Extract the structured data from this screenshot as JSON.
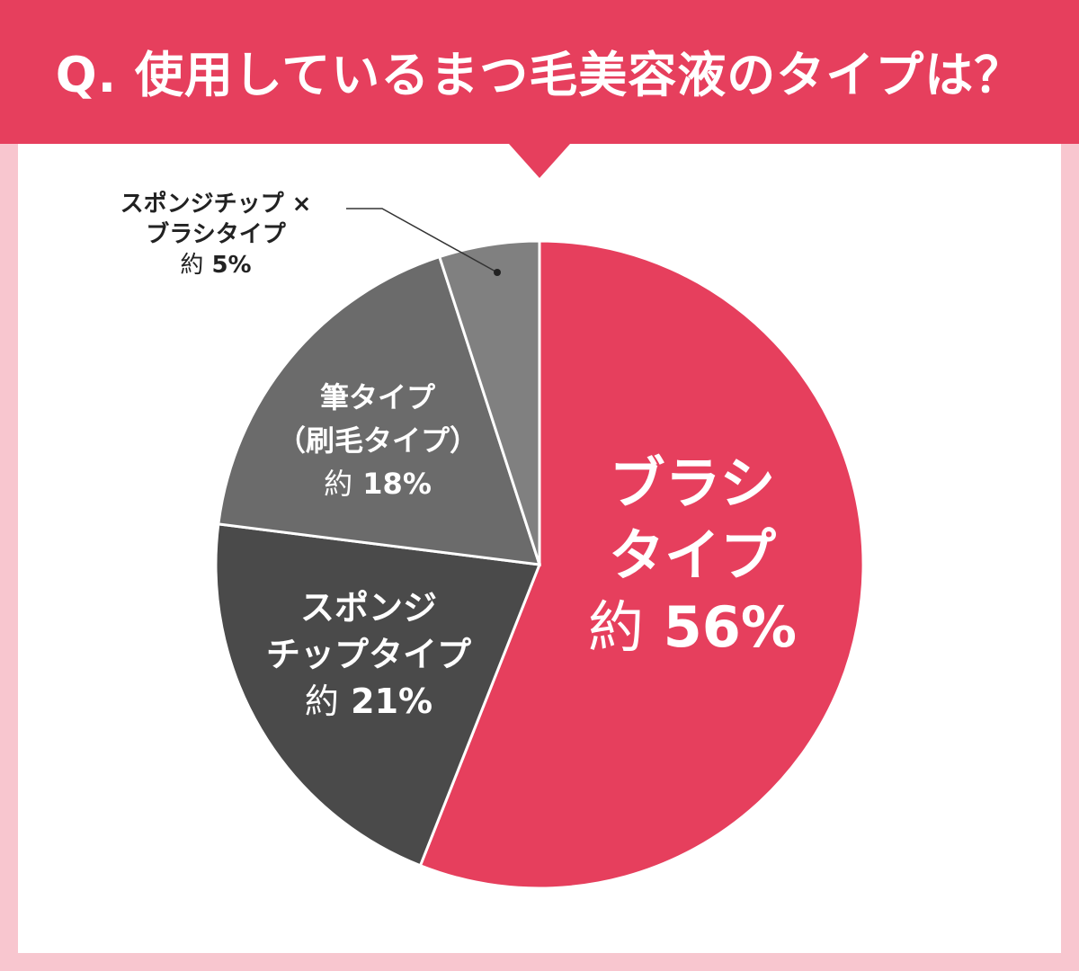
{
  "header": {
    "title": "Q. 使用しているまつ毛美容液のタイプは？",
    "color": "#e63f5d"
  },
  "chart_data": {
    "type": "pie",
    "title": "Q. 使用しているまつ毛美容液のタイプは？",
    "slices": [
      {
        "label": "ブラシタイプ",
        "value": 56,
        "display": "約 56%",
        "color": "#e63f5d"
      },
      {
        "label": "スポンジチップタイプ",
        "value": 21,
        "display": "約 21%",
        "color": "#4a4a4a"
      },
      {
        "label": "筆タイプ（刷毛タイプ）",
        "value": 18,
        "display": "約 18%",
        "color": "#6b6b6b"
      },
      {
        "label": "スポンジチップ × ブラシタイプ",
        "value": 5,
        "display": "約 5%",
        "color": "#808080"
      }
    ],
    "start": "12 o'clock, clockwise",
    "legend": "none (labels on slices)"
  },
  "labels": {
    "brush": {
      "line1": "ブラシ",
      "line2": "タイプ",
      "prefix": "約",
      "pct": "56%"
    },
    "sponge": {
      "line1": "スポンジ",
      "line2": "チップタイプ",
      "prefix": "約",
      "pct": "21%"
    },
    "fude": {
      "line1": "筆タイプ",
      "line2": "（刷毛タイプ）",
      "prefix": "約",
      "pct": "18%"
    },
    "combo": {
      "line1": "スポンジチップ ×",
      "line2": "ブラシタイプ",
      "prefix": "約",
      "pct": "5%"
    }
  }
}
